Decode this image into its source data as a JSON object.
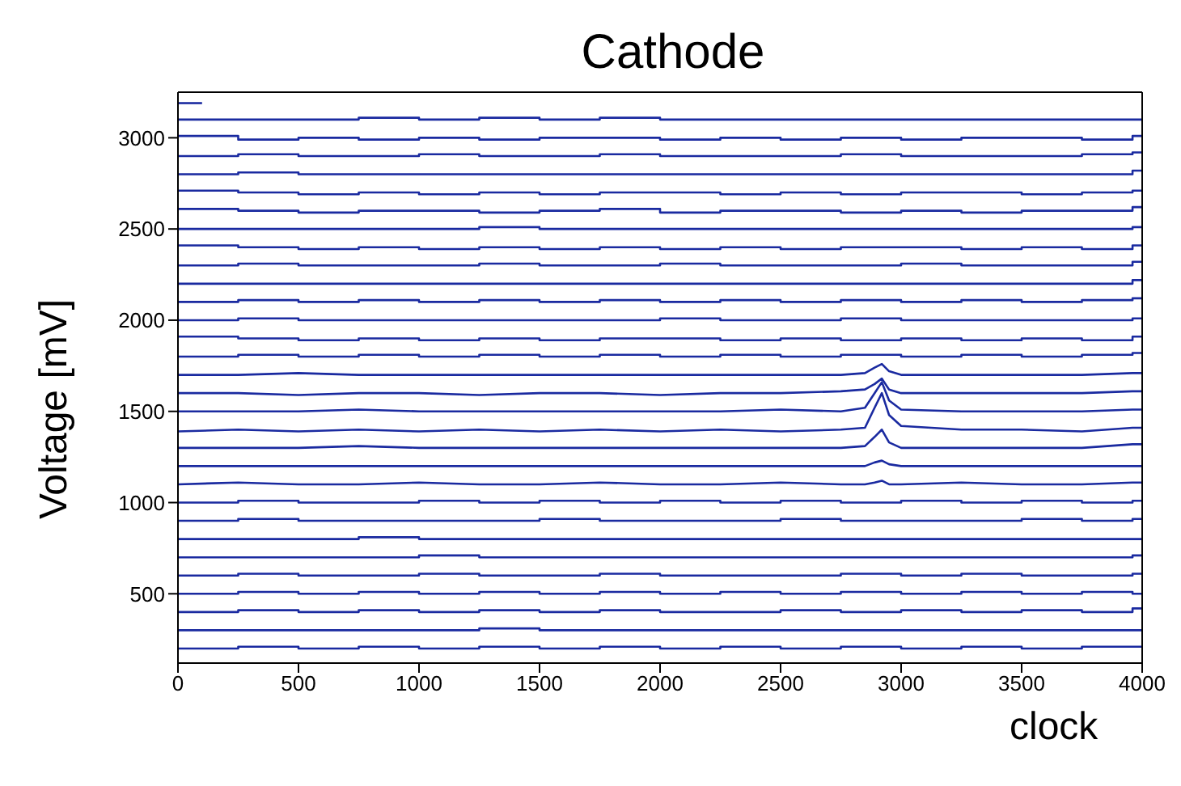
{
  "chart_data": {
    "type": "step",
    "title": "Cathode",
    "xlabel": "clock",
    "ylabel": "Voltage [mV]",
    "xlim": [
      0,
      4000
    ],
    "xticks": [
      0,
      500,
      1000,
      1500,
      2000,
      2500,
      3000,
      3500,
      4000
    ],
    "ylim": [
      120,
      3250
    ],
    "yticks": [
      500,
      1000,
      1500,
      2000,
      2500,
      3000
    ],
    "x": [
      0,
      250,
      500,
      750,
      1000,
      1250,
      1500,
      1750,
      2000,
      2250,
      2500,
      2750,
      3000,
      3250,
      3500,
      3750,
      3960,
      4000
    ],
    "series": [
      {
        "color": "#1a2aa0",
        "x": [
          0,
          100
        ],
        "values": [
          3190,
          3190
        ]
      },
      {
        "color": "#1a2aa0",
        "values": [
          3100,
          3100,
          3100,
          3110,
          3100,
          3110,
          3100,
          3110,
          3100,
          3100,
          3100,
          3100,
          3100,
          3100,
          3100,
          3100,
          3100,
          3100
        ]
      },
      {
        "color": "#1a2aa0",
        "values": [
          3010,
          2990,
          3000,
          2990,
          3000,
          2990,
          3000,
          3000,
          2990,
          3000,
          2990,
          3000,
          2990,
          3000,
          3000,
          2990,
          3010,
          3010
        ]
      },
      {
        "color": "#1a2aa0",
        "values": [
          2900,
          2910,
          2900,
          2900,
          2910,
          2900,
          2900,
          2910,
          2900,
          2900,
          2900,
          2910,
          2900,
          2900,
          2900,
          2910,
          2920,
          2920
        ]
      },
      {
        "color": "#1a2aa0",
        "values": [
          2800,
          2810,
          2800,
          2800,
          2800,
          2800,
          2800,
          2800,
          2800,
          2800,
          2800,
          2800,
          2800,
          2800,
          2800,
          2800,
          2820,
          2820
        ]
      },
      {
        "color": "#1a2aa0",
        "values": [
          2710,
          2700,
          2690,
          2700,
          2690,
          2700,
          2690,
          2700,
          2700,
          2690,
          2700,
          2690,
          2700,
          2700,
          2690,
          2700,
          2710,
          2710
        ]
      },
      {
        "color": "#1a2aa0",
        "values": [
          2610,
          2600,
          2590,
          2600,
          2600,
          2590,
          2600,
          2610,
          2590,
          2600,
          2600,
          2590,
          2600,
          2590,
          2600,
          2600,
          2620,
          2620
        ]
      },
      {
        "color": "#1a2aa0",
        "values": [
          2500,
          2500,
          2500,
          2500,
          2500,
          2510,
          2500,
          2500,
          2500,
          2500,
          2500,
          2500,
          2500,
          2500,
          2500,
          2500,
          2510,
          2510
        ]
      },
      {
        "color": "#1a2aa0",
        "values": [
          2410,
          2400,
          2390,
          2400,
          2390,
          2400,
          2390,
          2400,
          2390,
          2400,
          2390,
          2400,
          2400,
          2390,
          2400,
          2390,
          2410,
          2410
        ]
      },
      {
        "color": "#1a2aa0",
        "values": [
          2300,
          2310,
          2300,
          2300,
          2300,
          2310,
          2300,
          2300,
          2310,
          2300,
          2300,
          2300,
          2310,
          2300,
          2300,
          2300,
          2320,
          2320
        ]
      },
      {
        "color": "#1a2aa0",
        "values": [
          2200,
          2200,
          2200,
          2200,
          2200,
          2200,
          2200,
          2200,
          2200,
          2200,
          2200,
          2200,
          2200,
          2200,
          2200,
          2200,
          2220,
          2220
        ]
      },
      {
        "color": "#1a2aa0",
        "values": [
          2100,
          2110,
          2100,
          2110,
          2100,
          2110,
          2100,
          2110,
          2100,
          2110,
          2100,
          2110,
          2100,
          2110,
          2100,
          2110,
          2120,
          2120
        ]
      },
      {
        "color": "#1a2aa0",
        "values": [
          2000,
          2010,
          2000,
          2000,
          2000,
          2000,
          2000,
          2000,
          2010,
          2000,
          2000,
          2010,
          2000,
          2000,
          2000,
          2000,
          2010,
          2010
        ]
      },
      {
        "color": "#1a2aa0",
        "values": [
          1910,
          1900,
          1890,
          1900,
          1890,
          1900,
          1890,
          1900,
          1900,
          1890,
          1900,
          1890,
          1900,
          1890,
          1900,
          1890,
          1910,
          1910
        ]
      },
      {
        "color": "#1a2aa0",
        "values": [
          1800,
          1810,
          1800,
          1810,
          1800,
          1810,
          1800,
          1810,
          1800,
          1810,
          1800,
          1810,
          1800,
          1810,
          1800,
          1810,
          1820,
          1820
        ]
      },
      {
        "type": "line",
        "color": "#1a2aa0",
        "x": [
          0,
          250,
          500,
          750,
          1000,
          1250,
          1500,
          1750,
          2000,
          2250,
          2500,
          2750,
          2850,
          2890,
          2920,
          2950,
          3000,
          3250,
          3500,
          3750,
          3960,
          4000
        ],
        "values": [
          1700,
          1700,
          1710,
          1700,
          1700,
          1700,
          1700,
          1700,
          1700,
          1700,
          1700,
          1700,
          1710,
          1740,
          1760,
          1720,
          1700,
          1700,
          1700,
          1700,
          1710,
          1710
        ]
      },
      {
        "type": "line",
        "color": "#1a2aa0",
        "x": [
          0,
          250,
          500,
          750,
          1000,
          1250,
          1500,
          1750,
          2000,
          2250,
          2500,
          2750,
          2850,
          2890,
          2920,
          2950,
          3000,
          3250,
          3500,
          3750,
          3960,
          4000
        ],
        "values": [
          1600,
          1600,
          1590,
          1600,
          1600,
          1590,
          1600,
          1600,
          1590,
          1600,
          1600,
          1610,
          1620,
          1650,
          1680,
          1620,
          1600,
          1600,
          1600,
          1600,
          1610,
          1610
        ]
      },
      {
        "type": "line",
        "color": "#1a2aa0",
        "x": [
          0,
          250,
          500,
          750,
          1000,
          1250,
          1500,
          1750,
          2000,
          2250,
          2500,
          2750,
          2850,
          2890,
          2920,
          2950,
          3000,
          3250,
          3500,
          3750,
          3960,
          4000
        ],
        "values": [
          1500,
          1500,
          1500,
          1510,
          1500,
          1500,
          1500,
          1500,
          1500,
          1500,
          1510,
          1500,
          1520,
          1600,
          1660,
          1560,
          1510,
          1500,
          1500,
          1500,
          1510,
          1510
        ]
      },
      {
        "type": "line",
        "color": "#1a2aa0",
        "x": [
          0,
          250,
          500,
          750,
          1000,
          1250,
          1500,
          1750,
          2000,
          2250,
          2500,
          2750,
          2850,
          2890,
          2920,
          2950,
          3000,
          3250,
          3500,
          3750,
          3960,
          4000
        ],
        "values": [
          1390,
          1400,
          1390,
          1400,
          1390,
          1400,
          1390,
          1400,
          1390,
          1400,
          1390,
          1400,
          1410,
          1520,
          1600,
          1480,
          1420,
          1400,
          1400,
          1390,
          1410,
          1410
        ]
      },
      {
        "type": "line",
        "color": "#1a2aa0",
        "x": [
          0,
          250,
          500,
          750,
          1000,
          1250,
          1500,
          1750,
          2000,
          2250,
          2500,
          2750,
          2850,
          2890,
          2920,
          2950,
          3000,
          3250,
          3500,
          3750,
          3960,
          4000
        ],
        "values": [
          1300,
          1300,
          1300,
          1310,
          1300,
          1300,
          1300,
          1300,
          1300,
          1300,
          1300,
          1300,
          1310,
          1360,
          1400,
          1330,
          1300,
          1300,
          1300,
          1300,
          1320,
          1320
        ]
      },
      {
        "type": "line",
        "color": "#1a2aa0",
        "x": [
          0,
          250,
          500,
          750,
          1000,
          1250,
          1500,
          1750,
          2000,
          2250,
          2500,
          2750,
          2850,
          2890,
          2920,
          2950,
          3000,
          3250,
          3500,
          3750,
          3960,
          4000
        ],
        "values": [
          1200,
          1200,
          1200,
          1200,
          1200,
          1200,
          1200,
          1200,
          1200,
          1200,
          1200,
          1200,
          1200,
          1220,
          1230,
          1210,
          1200,
          1200,
          1200,
          1200,
          1200,
          1200
        ]
      },
      {
        "type": "line",
        "color": "#1a2aa0",
        "x": [
          0,
          250,
          500,
          750,
          1000,
          1250,
          1500,
          1750,
          2000,
          2250,
          2500,
          2750,
          2850,
          2890,
          2920,
          2950,
          3000,
          3250,
          3500,
          3750,
          3960,
          4000
        ],
        "values": [
          1100,
          1110,
          1100,
          1100,
          1110,
          1100,
          1100,
          1110,
          1100,
          1100,
          1110,
          1100,
          1100,
          1110,
          1120,
          1100,
          1100,
          1110,
          1100,
          1100,
          1110,
          1110
        ]
      },
      {
        "color": "#1a2aa0",
        "values": [
          1000,
          1010,
          1000,
          1000,
          1010,
          1000,
          1010,
          1000,
          1010,
          1000,
          1010,
          1000,
          1010,
          1000,
          1010,
          1000,
          1010,
          1010
        ]
      },
      {
        "color": "#1a2aa0",
        "values": [
          900,
          910,
          900,
          900,
          900,
          900,
          910,
          900,
          900,
          900,
          910,
          900,
          900,
          900,
          910,
          900,
          910,
          910
        ]
      },
      {
        "color": "#1a2aa0",
        "values": [
          800,
          800,
          800,
          810,
          800,
          800,
          800,
          800,
          800,
          800,
          800,
          800,
          800,
          800,
          800,
          800,
          800,
          800
        ]
      },
      {
        "color": "#1a2aa0",
        "values": [
          700,
          700,
          700,
          700,
          710,
          700,
          700,
          700,
          700,
          700,
          700,
          700,
          700,
          700,
          700,
          700,
          710,
          710
        ]
      },
      {
        "color": "#1a2aa0",
        "values": [
          600,
          610,
          600,
          600,
          610,
          600,
          600,
          610,
          600,
          600,
          600,
          610,
          600,
          610,
          600,
          600,
          610,
          610
        ]
      },
      {
        "color": "#1a2aa0",
        "values": [
          500,
          510,
          500,
          510,
          500,
          510,
          500,
          510,
          500,
          510,
          500,
          510,
          500,
          510,
          500,
          510,
          500,
          500
        ]
      },
      {
        "color": "#1a2aa0",
        "values": [
          400,
          410,
          400,
          410,
          400,
          410,
          400,
          410,
          400,
          400,
          410,
          400,
          410,
          400,
          410,
          400,
          420,
          420
        ]
      },
      {
        "color": "#1a2aa0",
        "values": [
          300,
          300,
          300,
          300,
          300,
          310,
          300,
          300,
          300,
          300,
          300,
          300,
          300,
          300,
          300,
          300,
          300,
          300
        ]
      },
      {
        "color": "#1a2aa0",
        "values": [
          200,
          210,
          200,
          210,
          200,
          210,
          200,
          210,
          200,
          210,
          200,
          210,
          200,
          210,
          200,
          210,
          210,
          210
        ]
      }
    ]
  }
}
